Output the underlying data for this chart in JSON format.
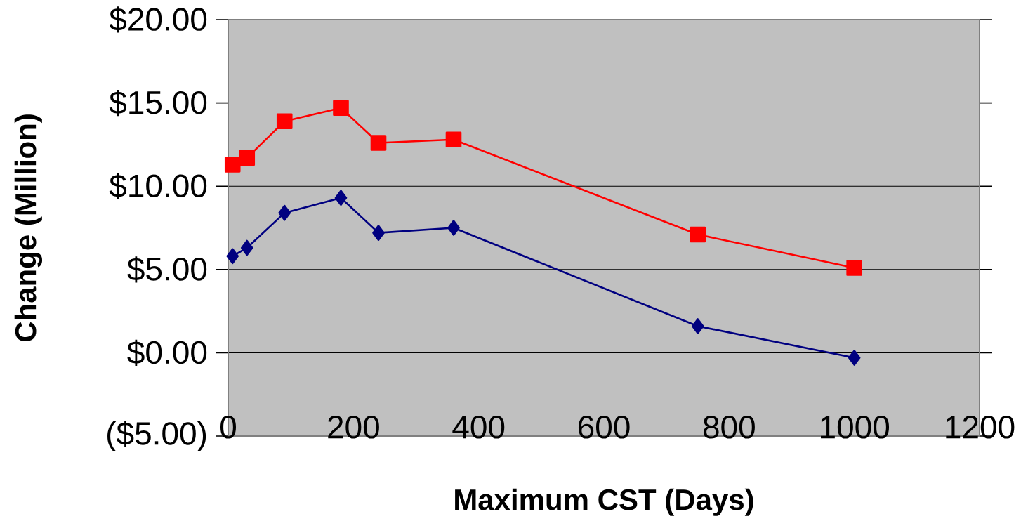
{
  "chart_data": {
    "type": "line",
    "xlabel": "Maximum CST (Days)",
    "ylabel": "Change (Million)",
    "x": [
      7,
      30,
      90,
      180,
      240,
      360,
      750,
      1000
    ],
    "series": [
      {
        "color": "#ff0000",
        "marker": "square",
        "values": [
          11.3,
          11.7,
          13.9,
          14.7,
          12.6,
          12.8,
          7.1,
          5.1
        ]
      },
      {
        "color": "#000080",
        "marker": "diamond",
        "values": [
          5.8,
          6.3,
          8.4,
          9.3,
          7.2,
          7.5,
          1.6,
          -0.3
        ]
      }
    ],
    "xlim": [
      0,
      1200
    ],
    "xticks": [
      0,
      200,
      400,
      600,
      800,
      1000,
      1200
    ],
    "ylim": [
      -5,
      20
    ],
    "yticks": [
      {
        "value": -5,
        "label": "($5.00)"
      },
      {
        "value": 0,
        "label": "$0.00"
      },
      {
        "value": 5,
        "label": "$5.00"
      },
      {
        "value": 10,
        "label": "$10.00"
      },
      {
        "value": 15,
        "label": "$15.00"
      },
      {
        "value": 20,
        "label": "$20.00"
      }
    ],
    "grid": "y",
    "line_style": "solid"
  }
}
